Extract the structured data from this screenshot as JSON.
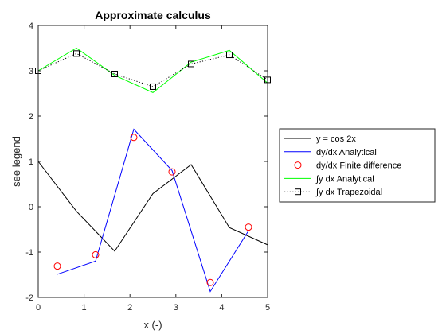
{
  "chart_data": {
    "type": "line",
    "title": "Approximate calculus",
    "xlabel": "x (-)",
    "ylabel": "see legend",
    "xlim": [
      0,
      5
    ],
    "ylim": [
      -2,
      4
    ],
    "xticks": [
      "0",
      "1",
      "2",
      "3",
      "4",
      "5"
    ],
    "yticks": [
      "-2",
      "-1",
      "0",
      "1",
      "2",
      "3",
      "4"
    ],
    "grid": false,
    "legend_position": "right, outside axes",
    "series": [
      {
        "name": "y = cos 2x",
        "color": "#000000",
        "line_style": "solid",
        "marker": "none",
        "x": [
          0,
          0.8333,
          1.6667,
          2.5,
          3.3333,
          4.1667,
          5
        ],
        "y": [
          1.0,
          -0.1,
          -0.98,
          0.29,
          0.93,
          -0.46,
          -0.84
        ]
      },
      {
        "name": "dy/dx Analytical",
        "color": "#0000ff",
        "line_style": "solid",
        "marker": "none",
        "x": [
          0.4167,
          1.25,
          2.0833,
          2.9167,
          3.75,
          4.5833
        ],
        "y": [
          -1.49,
          -1.2,
          1.71,
          0.8,
          -1.87,
          -0.53
        ]
      },
      {
        "name": "dy/dx Finite difference",
        "color": "#ff0000",
        "line_style": "none",
        "marker": "circle",
        "x": [
          0.4167,
          1.25,
          2.0833,
          2.9167,
          3.75,
          4.5833
        ],
        "y": [
          -1.31,
          -1.06,
          1.53,
          0.77,
          -1.67,
          -0.45
        ]
      },
      {
        "name": "∫y dx Analytical",
        "color": "#00ff00",
        "line_style": "solid",
        "marker": "none",
        "x": [
          0,
          0.8333,
          1.6667,
          2.5,
          3.3333,
          4.1667,
          5
        ],
        "y": [
          3.0,
          3.5,
          2.9,
          2.52,
          3.19,
          3.45,
          2.73
        ]
      },
      {
        "name": "∫y dx Trapezoidal",
        "color": "#000000",
        "line_style": "dotted",
        "marker": "square",
        "x": [
          0,
          0.8333,
          1.6667,
          2.5,
          3.3333,
          4.1667,
          5
        ],
        "y": [
          3.0,
          3.38,
          2.93,
          2.65,
          3.15,
          3.35,
          2.8
        ]
      }
    ]
  }
}
